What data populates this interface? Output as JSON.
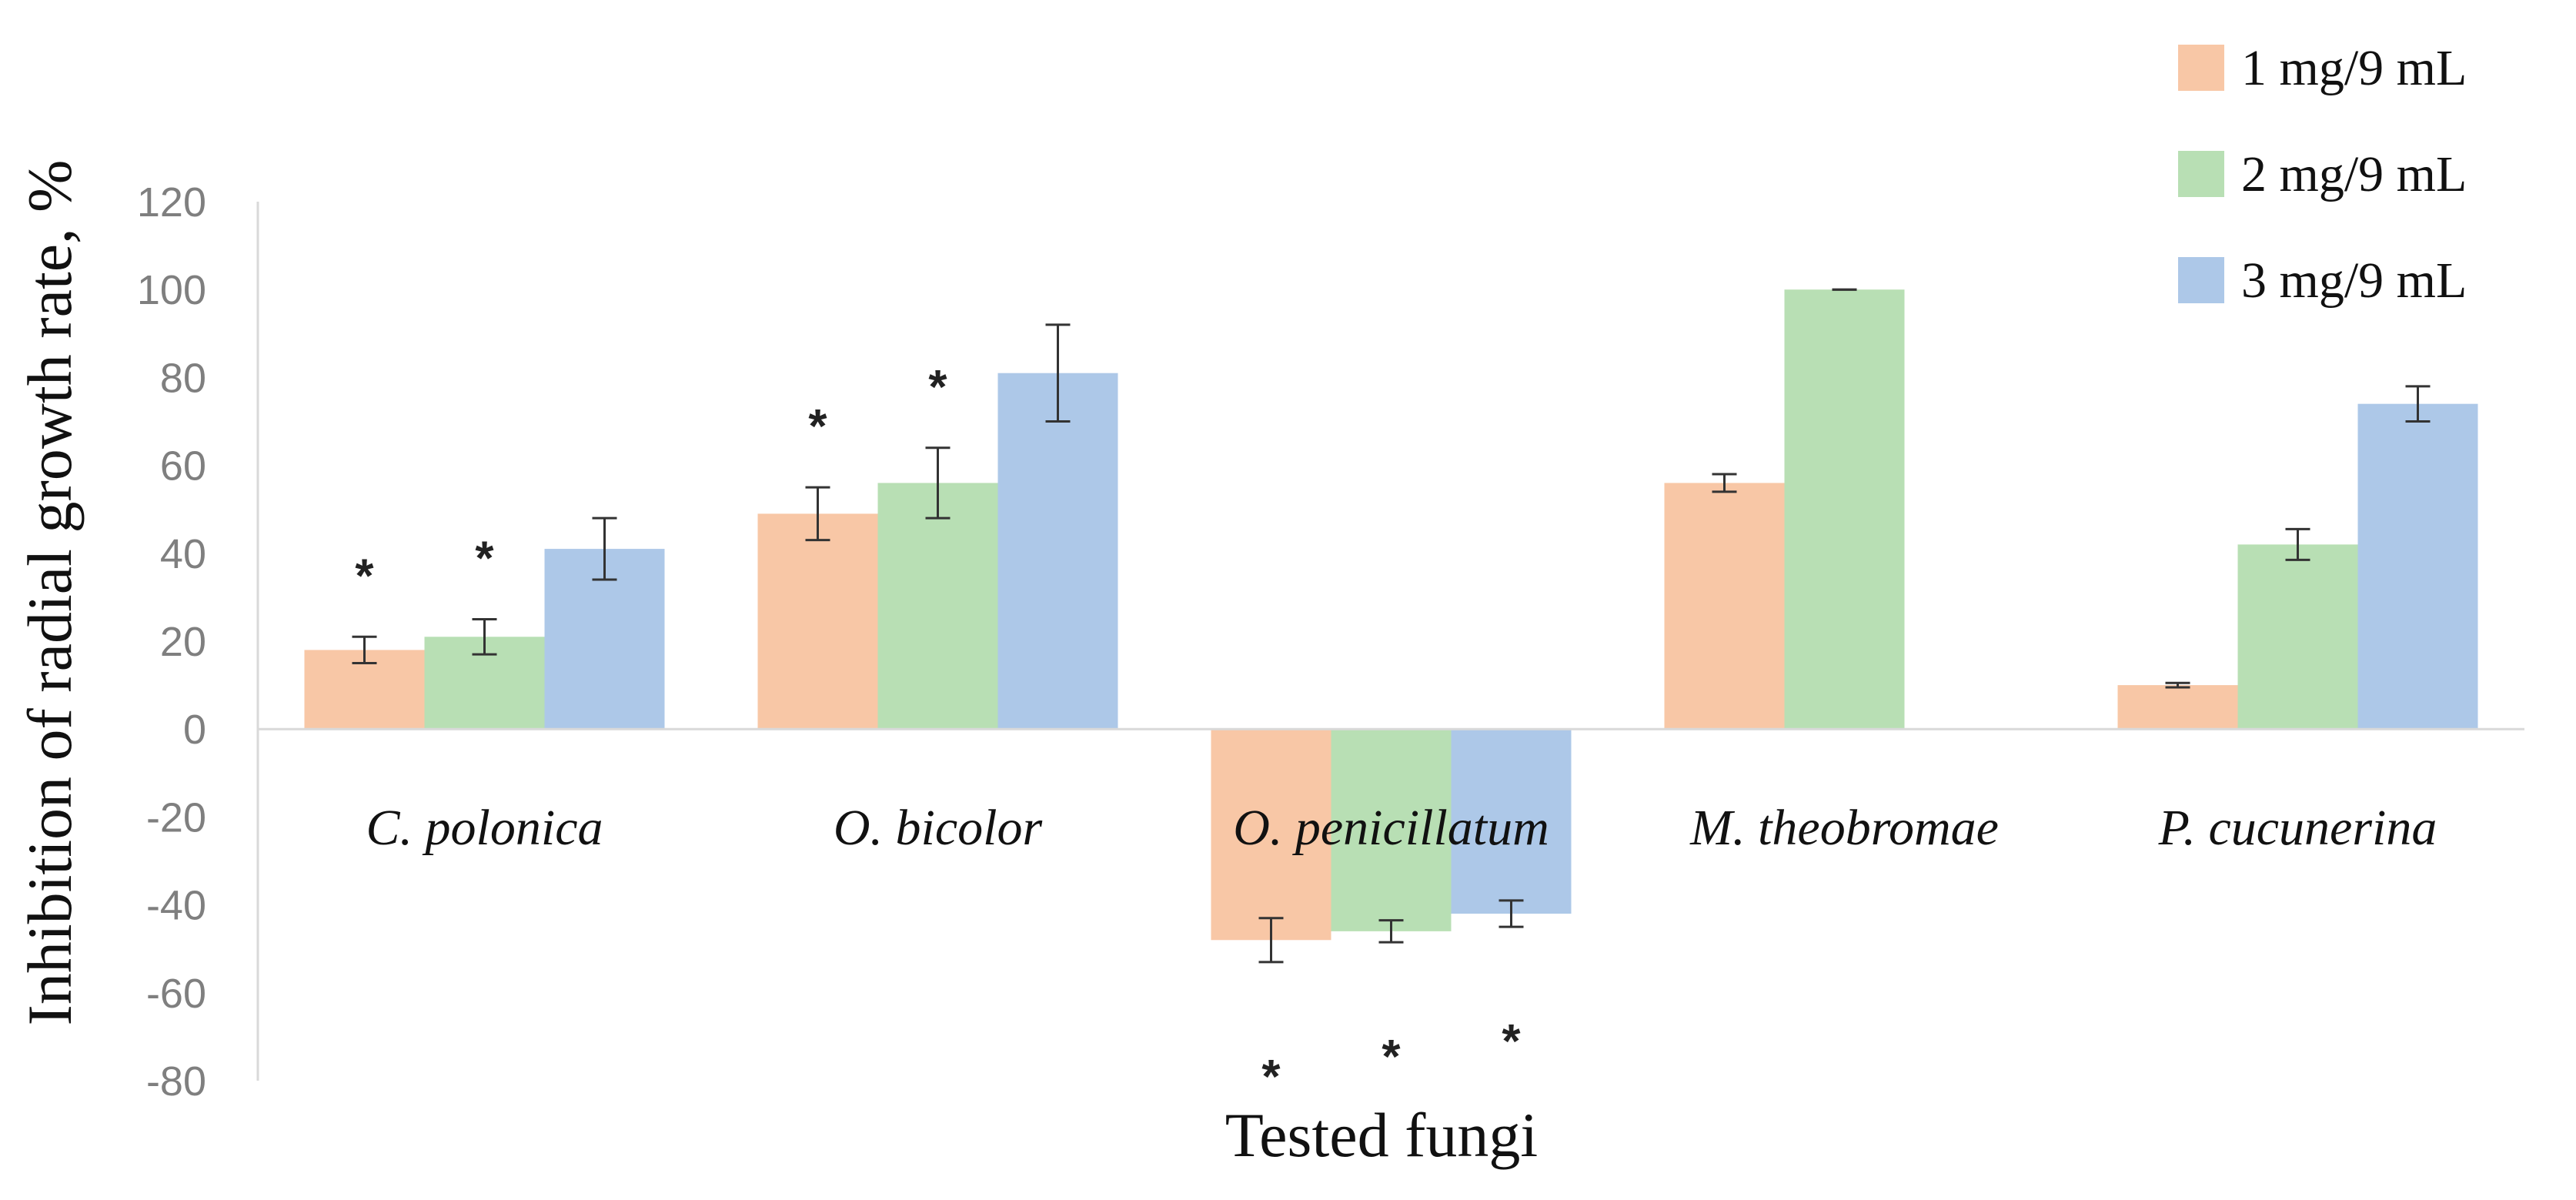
{
  "chart_data": {
    "type": "bar",
    "title": "",
    "xlabel": "Tested fungi",
    "ylabel": "Inhibition of radial growth rate, %",
    "ylim": [
      -80,
      120
    ],
    "yticks": [
      120,
      100,
      80,
      60,
      40,
      20,
      0,
      -20,
      -40,
      -60,
      -80
    ],
    "grid": false,
    "legend_position": "top-right",
    "categories": [
      "C. polonica",
      "O. bicolor",
      "O. penicillatum",
      "M. theobromae",
      "P. cucunerina"
    ],
    "series": [
      {
        "name": "1 mg/9 mL",
        "color": "#f8c7a6",
        "values": [
          18,
          49,
          -48,
          56,
          10
        ],
        "errors": [
          3,
          6,
          5,
          2,
          0.5
        ],
        "significance": [
          "*",
          "*",
          "*",
          "",
          ""
        ]
      },
      {
        "name": "2 mg/9 mL",
        "color": "#b8dfb4",
        "values": [
          21,
          56,
          -46,
          100,
          42
        ],
        "errors": [
          4,
          8,
          2.5,
          0,
          3.5
        ],
        "significance": [
          "*",
          "*",
          "*",
          "",
          ""
        ]
      },
      {
        "name": "3 mg/9 mL",
        "color": "#adc8e8",
        "values": [
          41,
          81,
          -42,
          null,
          74
        ],
        "errors": [
          7,
          11,
          3,
          0,
          4
        ],
        "significance": [
          "",
          "",
          "*",
          "",
          ""
        ]
      }
    ]
  }
}
